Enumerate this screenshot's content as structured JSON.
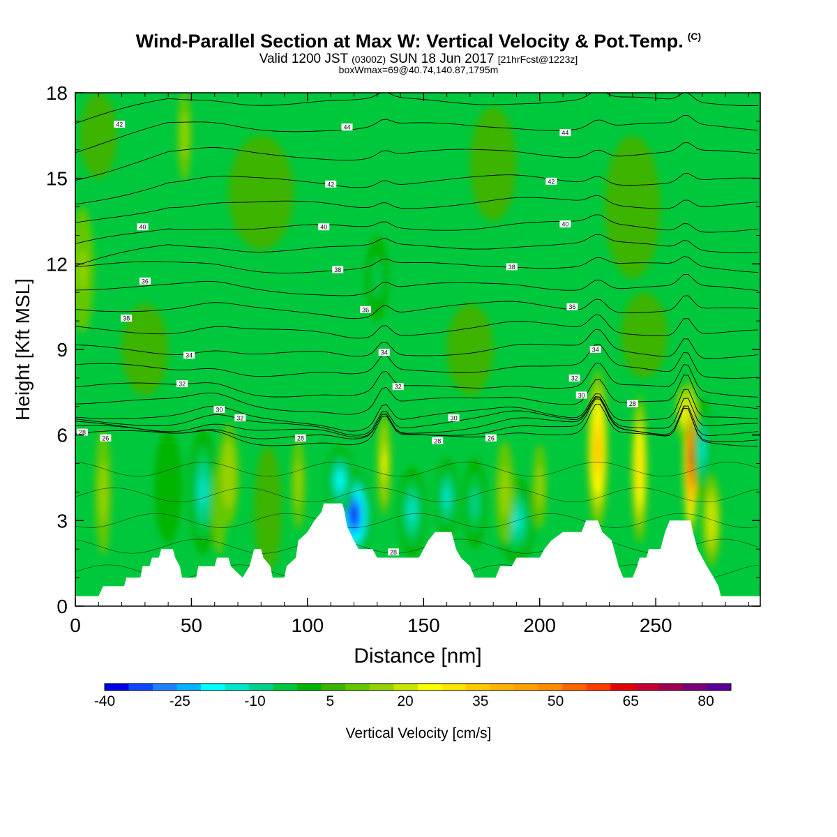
{
  "header": {
    "title": "Wind-Parallel Section at Max W: Vertical Velocity & Pot.Temp.",
    "title_mark": "(C)",
    "valid_a": "Valid 1200 JST",
    "valid_tz": "(0300Z)",
    "valid_b": "SUN 18 Jun 2017",
    "fcst": "[21hrFcst@1223z]",
    "box": "boxWmax=69@40.74,140.87,1795m"
  },
  "chart_data": {
    "type": "heatmap",
    "xlabel": "Distance [nm]",
    "ylabel": "Height [Kft MSL]",
    "xlim": [
      0,
      295
    ],
    "ylim": [
      0,
      18
    ],
    "x_ticks": [
      "0",
      "50",
      "100",
      "150",
      "200",
      "250"
    ],
    "y_ticks": [
      "0",
      "3",
      "6",
      "9",
      "12",
      "15",
      "18"
    ],
    "colorbar_label": "Vertical Velocity [cm/s]",
    "colorbar_ticks": [
      "-40",
      "-25",
      "-10",
      "5",
      "20",
      "35",
      "50",
      "65",
      "80"
    ],
    "colorbar_range": [
      -40,
      85
    ],
    "colorbar_colors": [
      "#0000e6",
      "#0f46ff",
      "#1e82ff",
      "#00b4ff",
      "#00ffff",
      "#00e6c8",
      "#00d28c",
      "#00c83c",
      "#00b400",
      "#3cb400",
      "#64c800",
      "#96d200",
      "#c8e600",
      "#ffff00",
      "#ffe600",
      "#ffc800",
      "#ffb400",
      "#ffa000",
      "#ff8c00",
      "#ff6400",
      "#ff3c00",
      "#e60000",
      "#c80032",
      "#a00050",
      "#780078",
      "#5a0096"
    ],
    "terrain": [
      [
        0,
        0.35
      ],
      [
        10,
        0.35
      ],
      [
        12,
        0.7
      ],
      [
        15,
        0.7
      ],
      [
        21,
        0.7
      ],
      [
        22,
        1.0
      ],
      [
        28,
        1.0
      ],
      [
        29,
        1.4
      ],
      [
        32,
        1.4
      ],
      [
        33,
        1.7
      ],
      [
        36,
        1.7
      ],
      [
        37,
        2.0
      ],
      [
        42,
        2.0
      ],
      [
        43,
        1.7
      ],
      [
        45,
        1.4
      ],
      [
        46,
        1.0
      ],
      [
        52,
        1.0
      ],
      [
        53,
        1.4
      ],
      [
        60,
        1.4
      ],
      [
        61,
        1.7
      ],
      [
        66,
        1.7
      ],
      [
        67,
        1.4
      ],
      [
        72,
        1.0
      ],
      [
        75,
        1.4
      ],
      [
        76,
        1.7
      ],
      [
        77,
        2.0
      ],
      [
        80,
        2.0
      ],
      [
        81,
        1.7
      ],
      [
        84,
        1.4
      ],
      [
        85,
        1.0
      ],
      [
        90,
        1.0
      ],
      [
        91,
        1.4
      ],
      [
        95,
        1.7
      ],
      [
        96,
        2.3
      ],
      [
        100,
        2.6
      ],
      [
        103,
        3.0
      ],
      [
        106,
        3.3
      ],
      [
        107,
        3.6
      ],
      [
        115,
        3.6
      ],
      [
        116,
        3.3
      ],
      [
        117,
        2.8
      ],
      [
        120,
        2.3
      ],
      [
        122,
        2.0
      ],
      [
        128,
        2.0
      ],
      [
        130,
        1.7
      ],
      [
        140,
        1.7
      ],
      [
        141,
        1.7
      ],
      [
        148,
        1.7
      ],
      [
        150,
        2.0
      ],
      [
        152,
        2.3
      ],
      [
        155,
        2.6
      ],
      [
        162,
        2.6
      ],
      [
        164,
        2.0
      ],
      [
        166,
        1.7
      ],
      [
        170,
        1.4
      ],
      [
        172,
        1.0
      ],
      [
        181,
        1.0
      ],
      [
        183,
        1.4
      ],
      [
        188,
        1.4
      ],
      [
        190,
        1.7
      ],
      [
        200,
        1.7
      ],
      [
        202,
        2.0
      ],
      [
        205,
        2.3
      ],
      [
        210,
        2.6
      ],
      [
        218,
        2.6
      ],
      [
        220,
        3.0
      ],
      [
        225,
        3.0
      ],
      [
        227,
        2.6
      ],
      [
        231,
        2.3
      ],
      [
        233,
        1.7
      ],
      [
        234,
        1.4
      ],
      [
        236,
        1.0
      ],
      [
        240,
        1.0
      ],
      [
        242,
        1.4
      ],
      [
        243,
        1.7
      ],
      [
        246,
        1.7
      ],
      [
        247,
        2.0
      ],
      [
        252,
        2.0
      ],
      [
        253,
        2.3
      ],
      [
        254,
        2.6
      ],
      [
        256,
        3.0
      ],
      [
        265,
        3.0
      ],
      [
        266,
        2.6
      ],
      [
        268,
        2.0
      ],
      [
        270,
        1.7
      ],
      [
        272,
        1.4
      ],
      [
        275,
        1.0
      ],
      [
        277,
        0.7
      ],
      [
        278,
        0.35
      ],
      [
        295,
        0.35
      ]
    ],
    "w_cells": [
      {
        "x": 12,
        "y": 4.0,
        "rx": 3.5,
        "ry": 2.2,
        "w": 15
      },
      {
        "x": 40,
        "y": 4.2,
        "rx": 6.0,
        "ry": 2.0,
        "w": 2
      },
      {
        "x": 55,
        "y": 4.0,
        "rx": 6.0,
        "ry": 2.2,
        "w": -12
      },
      {
        "x": 62,
        "y": 3.4,
        "rx": 3.0,
        "ry": 1.6,
        "w": 12
      },
      {
        "x": 66,
        "y": 4.6,
        "rx": 4.5,
        "ry": 1.8,
        "w": 17
      },
      {
        "x": 83,
        "y": 3.4,
        "rx": 6.0,
        "ry": 2.2,
        "w": 8
      },
      {
        "x": 96,
        "y": 4.3,
        "rx": 3.0,
        "ry": 1.6,
        "w": 13
      },
      {
        "x": 120,
        "y": 3.2,
        "rx": 8.0,
        "ry": 1.6,
        "w": -36
      },
      {
        "x": 114,
        "y": 4.4,
        "rx": 6.0,
        "ry": 1.2,
        "w": -18
      },
      {
        "x": 133,
        "y": 5.0,
        "rx": 3.0,
        "ry": 1.8,
        "w": 26
      },
      {
        "x": 145,
        "y": 3.3,
        "rx": 6.0,
        "ry": 1.6,
        "w": -15
      },
      {
        "x": 160,
        "y": 3.8,
        "rx": 5.0,
        "ry": 1.4,
        "w": -12
      },
      {
        "x": 172,
        "y": 3.6,
        "rx": 5.0,
        "ry": 1.6,
        "w": -8
      },
      {
        "x": 190,
        "y": 3.0,
        "rx": 8.0,
        "ry": 1.5,
        "w": -14
      },
      {
        "x": 185,
        "y": 4.0,
        "rx": 4.0,
        "ry": 1.8,
        "w": 14
      },
      {
        "x": 200,
        "y": 4.2,
        "rx": 3.0,
        "ry": 1.5,
        "w": 14
      },
      {
        "x": 225,
        "y": 5.5,
        "rx": 4.5,
        "ry": 2.8,
        "w": 38
      },
      {
        "x": 243,
        "y": 4.8,
        "rx": 3.5,
        "ry": 2.6,
        "w": 32
      },
      {
        "x": 265,
        "y": 5.2,
        "rx": 3.2,
        "ry": 2.8,
        "w": 69
      },
      {
        "x": 262,
        "y": 6.8,
        "rx": 3.0,
        "ry": 1.0,
        "w": 30
      },
      {
        "x": 270,
        "y": 5.5,
        "rx": 4.0,
        "ry": 1.8,
        "w": -12
      },
      {
        "x": 274,
        "y": 3.0,
        "rx": 4.0,
        "ry": 1.6,
        "w": 22
      },
      {
        "x": 3,
        "y": 11.8,
        "rx": 5.0,
        "ry": 2.2,
        "w": 16
      },
      {
        "x": 47,
        "y": 16.5,
        "rx": 3.0,
        "ry": 1.6,
        "w": 13
      },
      {
        "x": 130,
        "y": 11.5,
        "rx": 5.0,
        "ry": 1.5,
        "w": -5
      },
      {
        "x": 10,
        "y": 16.5,
        "rx": 8.0,
        "ry": 1.5,
        "w": 6
      },
      {
        "x": 240,
        "y": 14.0,
        "rx": 12.0,
        "ry": 2.5,
        "w": 6
      },
      {
        "x": 180,
        "y": 15.5,
        "rx": 10.0,
        "ry": 2.0,
        "w": 6
      },
      {
        "x": 80,
        "y": 14.5,
        "rx": 14.0,
        "ry": 2.0,
        "w": 6
      },
      {
        "x": 30,
        "y": 9.0,
        "rx": 10.0,
        "ry": 1.6,
        "w": 5
      },
      {
        "x": 170,
        "y": 9.0,
        "rx": 10.0,
        "ry": 1.6,
        "w": 6
      },
      {
        "x": 245,
        "y": 9.5,
        "rx": 10.0,
        "ry": 1.5,
        "w": 6
      }
    ],
    "theta_levels": [
      26,
      28,
      30,
      32,
      34,
      36,
      38,
      40,
      42,
      44
    ],
    "theta_base_height": [
      5.9,
      6.2,
      6.6,
      7.6,
      8.9,
      10.4,
      11.9,
      13.3,
      14.9,
      16.8
    ],
    "theta_labels": [
      {
        "text": "28",
        "x": 3,
        "y": 6.1
      },
      {
        "text": "26",
        "x": 13,
        "y": 5.9
      },
      {
        "text": "38",
        "x": 22,
        "y": 10.1
      },
      {
        "text": "36",
        "x": 30,
        "y": 11.4
      },
      {
        "text": "40",
        "x": 29,
        "y": 13.3
      },
      {
        "text": "42",
        "x": 19,
        "y": 16.9
      },
      {
        "text": "34",
        "x": 49,
        "y": 8.8
      },
      {
        "text": "32",
        "x": 46,
        "y": 7.8
      },
      {
        "text": "30",
        "x": 62,
        "y": 6.9
      },
      {
        "text": "32",
        "x": 71,
        "y": 6.6
      },
      {
        "text": "28",
        "x": 97,
        "y": 5.9
      },
      {
        "text": "42",
        "x": 110,
        "y": 14.8
      },
      {
        "text": "40",
        "x": 107,
        "y": 13.3
      },
      {
        "text": "38",
        "x": 113,
        "y": 11.8
      },
      {
        "text": "44",
        "x": 117,
        "y": 16.8
      },
      {
        "text": "36",
        "x": 125,
        "y": 10.4
      },
      {
        "text": "34",
        "x": 133,
        "y": 8.9
      },
      {
        "text": "32",
        "x": 139,
        "y": 7.7
      },
      {
        "text": "30",
        "x": 163,
        "y": 6.6
      },
      {
        "text": "28",
        "x": 156,
        "y": 5.8
      },
      {
        "text": "26",
        "x": 179,
        "y": 5.9
      },
      {
        "text": "38",
        "x": 188,
        "y": 11.9
      },
      {
        "text": "44",
        "x": 211,
        "y": 16.6
      },
      {
        "text": "42",
        "x": 205,
        "y": 14.9
      },
      {
        "text": "40",
        "x": 211,
        "y": 13.4
      },
      {
        "text": "36",
        "x": 214,
        "y": 10.5
      },
      {
        "text": "34",
        "x": 224,
        "y": 9.0
      },
      {
        "text": "32",
        "x": 215,
        "y": 8.0
      },
      {
        "text": "30",
        "x": 218,
        "y": 7.4
      },
      {
        "text": "28",
        "x": 240,
        "y": 7.1
      },
      {
        "text": "28",
        "x": 137,
        "y": 1.9
      }
    ]
  }
}
